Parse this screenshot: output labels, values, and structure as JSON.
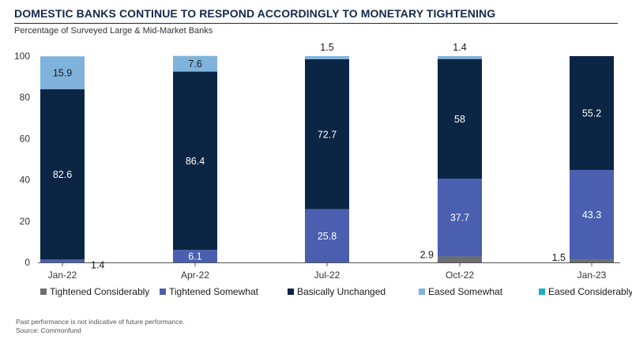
{
  "header": {
    "title": "DOMESTIC BANKS CONTINUE TO RESPOND ACCORDINGLY TO MONETARY TIGHTENING",
    "subtitle": "Percentage of Surveyed Large & Mid-Market Banks"
  },
  "footer": {
    "disclaimer": "Past performance is not indicative of future performance.",
    "source": "Source: Commonfund"
  },
  "chart_data": {
    "type": "bar",
    "stacked": true,
    "categories": [
      "Jan-22",
      "Apr-22",
      "Jul-22",
      "Oct-22",
      "Jan-23"
    ],
    "series": [
      {
        "name": "Tightened Considerably",
        "color": "#6d6e71",
        "values": [
          0,
          0,
          0,
          2.9,
          1.5
        ]
      },
      {
        "name": "Tightened Somewhat",
        "color": "#4a5fb0",
        "values": [
          1.4,
          6.1,
          25.8,
          37.7,
          43.3
        ]
      },
      {
        "name": "Basically Unchanged",
        "color": "#0b2545",
        "values": [
          82.6,
          86.4,
          72.7,
          58,
          55.2
        ]
      },
      {
        "name": "Eased Somewhat",
        "color": "#7fb3dc",
        "values": [
          15.9,
          7.6,
          1.5,
          1.4,
          0
        ]
      },
      {
        "name": "Eased Considerably",
        "color": "#1ab0c2",
        "values": [
          0,
          0,
          0,
          0,
          0
        ]
      }
    ],
    "data_labels": [
      {
        "category": "Jan-22",
        "series": "Eased Somewhat",
        "text": "15.9"
      },
      {
        "category": "Jan-22",
        "series": "Basically Unchanged",
        "text": "82.6"
      },
      {
        "category": "Jan-22",
        "series": "Tightened Somewhat",
        "text": "1.4"
      },
      {
        "category": "Apr-22",
        "series": "Eased Somewhat",
        "text": "7.6"
      },
      {
        "category": "Apr-22",
        "series": "Basically Unchanged",
        "text": "86.4"
      },
      {
        "category": "Apr-22",
        "series": "Tightened Somewhat",
        "text": "6.1"
      },
      {
        "category": "Jul-22",
        "series": "Eased Somewhat",
        "text": "1.5"
      },
      {
        "category": "Jul-22",
        "series": "Basically Unchanged",
        "text": "72.7"
      },
      {
        "category": "Jul-22",
        "series": "Tightened Somewhat",
        "text": "25.8"
      },
      {
        "category": "Oct-22",
        "series": "Eased Somewhat",
        "text": "1.4"
      },
      {
        "category": "Oct-22",
        "series": "Basically Unchanged",
        "text": "58"
      },
      {
        "category": "Oct-22",
        "series": "Tightened Somewhat",
        "text": "37.7"
      },
      {
        "category": "Oct-22",
        "series": "Tightened Considerably",
        "text": "2.9"
      },
      {
        "category": "Jan-23",
        "series": "Basically Unchanged",
        "text": "55.2"
      },
      {
        "category": "Jan-23",
        "series": "Tightened Somewhat",
        "text": "43.3"
      },
      {
        "category": "Jan-23",
        "series": "Tightened Considerably",
        "text": "1.5"
      }
    ],
    "ylim": [
      0,
      100
    ],
    "yticks": [
      "0",
      "20",
      "40",
      "60",
      "80",
      "100"
    ],
    "xlabel": "",
    "ylabel": "",
    "grid": false,
    "legend_position": "bottom"
  }
}
